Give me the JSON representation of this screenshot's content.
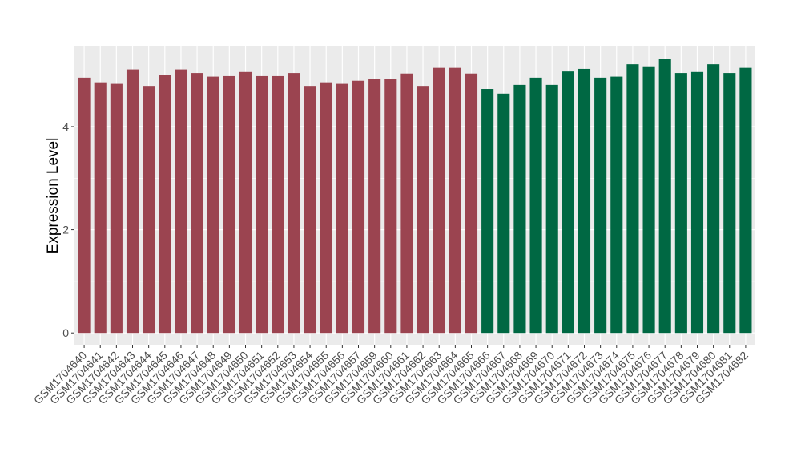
{
  "chart_data": {
    "type": "bar",
    "y_label": "Expression Level",
    "categories": [
      "GSM1704640",
      "GSM1704641",
      "GSM1704642",
      "GSM1704643",
      "GSM1704644",
      "GSM1704645",
      "GSM1704646",
      "GSM1704647",
      "GSM1704648",
      "GSM1704649",
      "GSM1704650",
      "GSM1704651",
      "GSM1704652",
      "GSM1704653",
      "GSM1704654",
      "GSM1704655",
      "GSM1704656",
      "GSM1704657",
      "GSM1704659",
      "GSM1704660",
      "GSM1704661",
      "GSM1704662",
      "GSM1704663",
      "GSM1704664",
      "GSM1704665",
      "GSM1704666",
      "GSM1704667",
      "GSM1704668",
      "GSM1704669",
      "GSM1704670",
      "GSM1704671",
      "GSM1704672",
      "GSM1704673",
      "GSM1704674",
      "GSM1704675",
      "GSM1704676",
      "GSM1704677",
      "GSM1704678",
      "GSM1704679",
      "GSM1704680",
      "GSM1704681",
      "GSM1704682"
    ],
    "values": [
      4.95,
      4.86,
      4.83,
      5.11,
      4.79,
      5.0,
      5.11,
      5.04,
      4.97,
      4.98,
      5.06,
      4.98,
      4.98,
      5.04,
      4.79,
      4.86,
      4.83,
      4.89,
      4.92,
      4.93,
      5.03,
      4.79,
      5.14,
      5.14,
      5.03,
      4.73,
      4.64,
      4.81,
      4.95,
      4.81,
      5.07,
      5.12,
      4.95,
      4.97,
      5.21,
      5.17,
      5.31,
      5.04,
      5.06,
      5.21,
      5.04,
      5.14
    ],
    "colors": [
      "#9b4450",
      "#9b4450",
      "#9b4450",
      "#9b4450",
      "#9b4450",
      "#9b4450",
      "#9b4450",
      "#9b4450",
      "#9b4450",
      "#9b4450",
      "#9b4450",
      "#9b4450",
      "#9b4450",
      "#9b4450",
      "#9b4450",
      "#9b4450",
      "#9b4450",
      "#9b4450",
      "#9b4450",
      "#9b4450",
      "#9b4450",
      "#9b4450",
      "#9b4450",
      "#9b4450",
      "#9b4450",
      "#006843",
      "#006843",
      "#006843",
      "#006843",
      "#006843",
      "#006843",
      "#006843",
      "#006843",
      "#006843",
      "#006843",
      "#006843",
      "#006843",
      "#006843",
      "#006843",
      "#006843",
      "#006843",
      "#006843"
    ],
    "ylim": [
      -0.23,
      5.57
    ],
    "yticks": [
      0,
      2,
      4
    ],
    "grid": true
  }
}
